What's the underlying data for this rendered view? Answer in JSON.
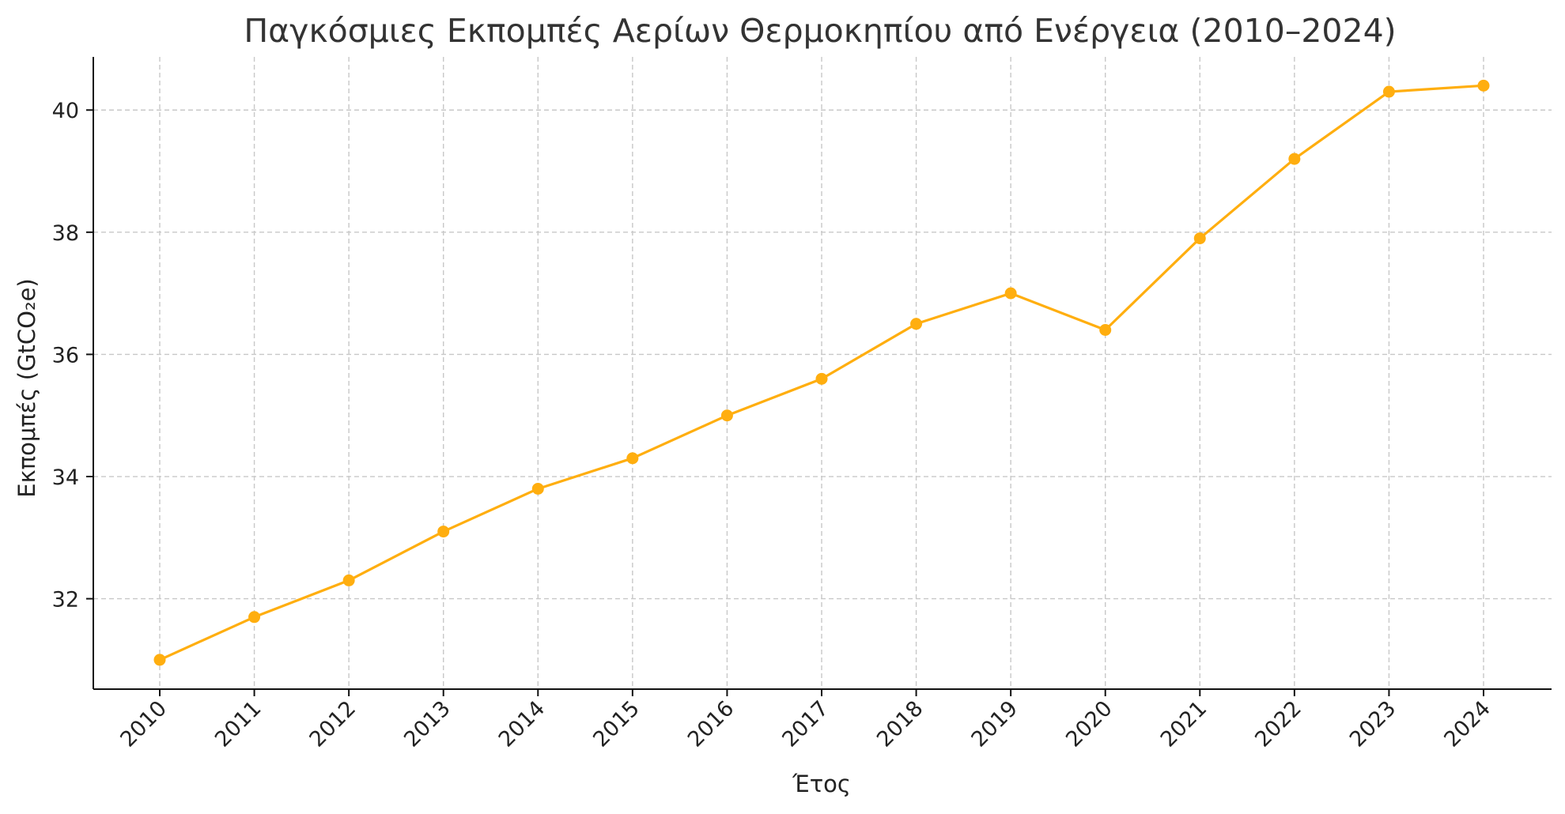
{
  "chart_data": {
    "type": "line",
    "title": "Παγκόσμιες Εκπομπές Αερίων Θερμοκηπίου από Ενέργεια (2010–2024)",
    "xlabel": "Έτος",
    "ylabel": "Εκπομπές (GtCO₂e)",
    "x": [
      "2010",
      "2011",
      "2012",
      "2013",
      "2014",
      "2015",
      "2016",
      "2017",
      "2018",
      "2019",
      "2020",
      "2021",
      "2022",
      "2023",
      "2024"
    ],
    "series": [
      {
        "values": [
          31.0,
          31.7,
          32.3,
          33.1,
          33.8,
          34.3,
          35.0,
          35.6,
          36.5,
          37.0,
          36.4,
          37.9,
          39.2,
          40.3,
          40.4
        ],
        "color": "#FFAE0F",
        "marker": "circle"
      }
    ],
    "yticks": [
      32,
      34,
      36,
      38,
      40
    ],
    "ylim": [
      30.52,
      40.87
    ],
    "grid": true,
    "grid_style": "dashed",
    "xtick_rotation": 45,
    "legend": "none"
  }
}
